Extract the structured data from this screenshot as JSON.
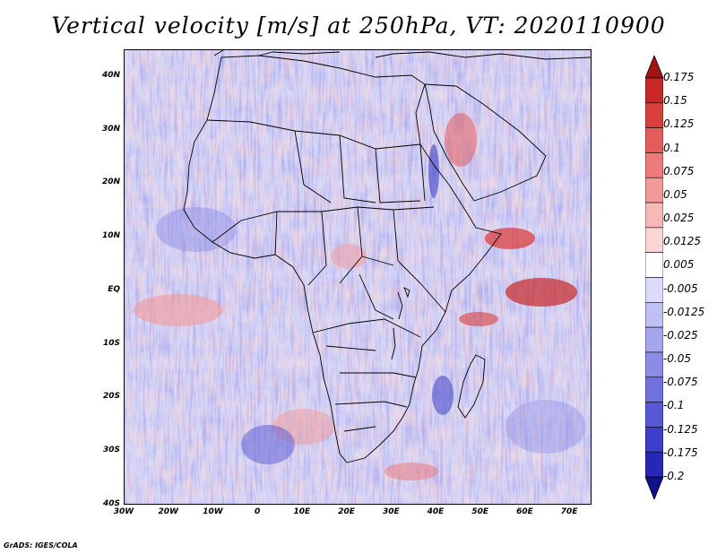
{
  "title": "Vertical velocity [m/s] at 250hPa, VT: 2020110900",
  "credit": "GrADS: IGES/COLA",
  "map": {
    "region": "Africa",
    "lon_range": [
      -30,
      75
    ],
    "lat_range": [
      -40,
      45
    ],
    "lat_ticks": [
      "40N",
      "30N",
      "20N",
      "10N",
      "EQ",
      "10S",
      "20S",
      "30S",
      "40S"
    ],
    "lat_tick_values": [
      40,
      30,
      20,
      10,
      0,
      -10,
      -20,
      -30,
      -40
    ],
    "lon_ticks": [
      "30W",
      "20W",
      "10W",
      "0",
      "10E",
      "20E",
      "30E",
      "40E",
      "50E",
      "60E",
      "70E"
    ],
    "lon_tick_values": [
      -30,
      -20,
      -10,
      0,
      10,
      20,
      30,
      40,
      50,
      60,
      70
    ]
  },
  "colorbar": {
    "labels": [
      "0.175",
      "0.15",
      "0.125",
      "0.1",
      "0.075",
      "0.05",
      "0.025",
      "0.0125",
      "0.005",
      "-0.005",
      "-0.0125",
      "-0.025",
      "-0.05",
      "-0.075",
      "-0.1",
      "-0.125",
      "-0.175",
      "-0.2"
    ],
    "colors": [
      "#b01a1a",
      "#c82828",
      "#d84040",
      "#e45c5c",
      "#ec7c7c",
      "#f29a9a",
      "#f6b8b8",
      "#fad6d6",
      "#ffffff",
      "#dcdcfa",
      "#c0c0f4",
      "#a6a6ee",
      "#8c8ce6",
      "#7272de",
      "#5858d4",
      "#3e3ec8",
      "#2828b4",
      "#1a1aa0"
    ],
    "top_arrow_color": "#a01414",
    "bottom_arrow_color": "#10108c"
  }
}
